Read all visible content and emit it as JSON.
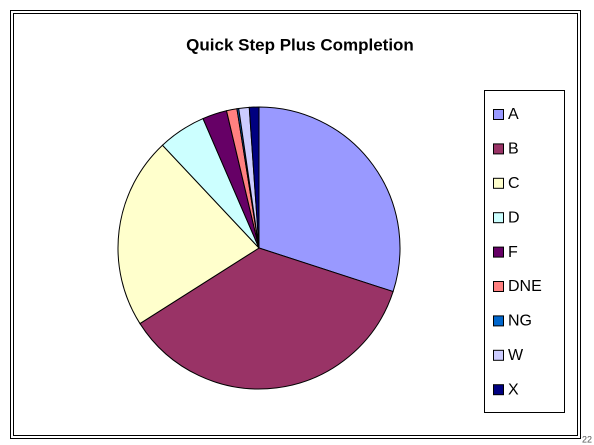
{
  "chart_data": {
    "type": "pie",
    "title": "Quick Step Plus Completion",
    "categories": [
      "A",
      "B",
      "C",
      "D",
      "F",
      "DNE",
      "NG",
      "W",
      "X"
    ],
    "values": [
      30,
      36,
      22,
      5.5,
      2.8,
      1.2,
      0.2,
      1.2,
      1.1
    ],
    "colors": [
      "#9999ff",
      "#993366",
      "#ffffcc",
      "#ccffff",
      "#660066",
      "#ff8080",
      "#0066cc",
      "#ccccff",
      "#000080"
    ],
    "legend": "right"
  },
  "page_number": "22"
}
